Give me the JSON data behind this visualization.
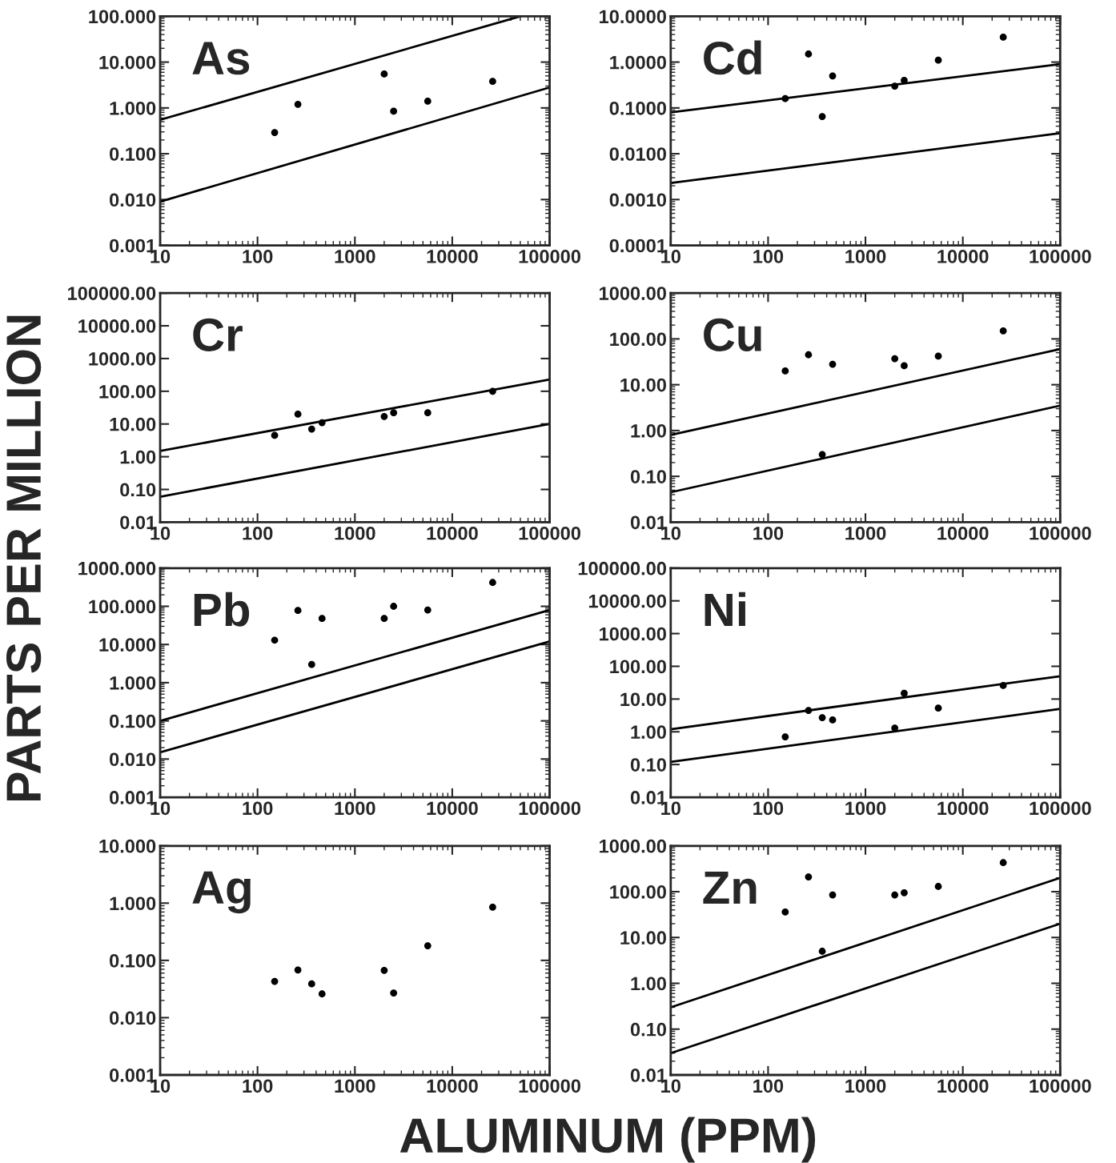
{
  "chart_data": [
    {
      "type": "scatter",
      "annotations": [
        "As"
      ],
      "ylabel": "PARTS PER MILLION",
      "xlabel": "ALUMINUM (PPM)",
      "log": "xy",
      "marker": "circle",
      "line_style": "solid",
      "xlim": [
        10,
        100000
      ],
      "ylim": [
        0.001,
        100
      ],
      "xticks": [
        10,
        100,
        1000,
        10000,
        100000
      ],
      "yticks": [
        {
          "value": 0.001,
          "label": "0.001"
        },
        {
          "value": 0.01,
          "label": "0.010"
        },
        {
          "value": 0.1,
          "label": "0.100"
        },
        {
          "value": 1,
          "label": "1.000"
        },
        {
          "value": 10,
          "label": "10.000"
        },
        {
          "value": 100,
          "label": "100.000"
        }
      ],
      "series": [
        {
          "color": "#000000",
          "x": [
            150,
            260,
            2000,
            2500,
            5600,
            26000
          ],
          "values": [
            0.29,
            1.2,
            5.5,
            0.85,
            1.4,
            3.8
          ]
        },
        {
          "type": "line",
          "marker": "none",
          "color": "#000000",
          "x": [
            10,
            50000
          ],
          "values": [
            0.55,
            100
          ]
        },
        {
          "type": "line",
          "marker": "none",
          "color": "#000000",
          "x": [
            10,
            100000
          ],
          "values": [
            0.009,
            2.8
          ]
        }
      ]
    },
    {
      "type": "scatter",
      "annotations": [
        "Cd"
      ],
      "log": "xy",
      "marker": "circle",
      "line_style": "solid",
      "xlim": [
        10,
        100000
      ],
      "ylim": [
        0.0001,
        10
      ],
      "xticks": [
        10,
        100,
        1000,
        10000,
        100000
      ],
      "yticks": [
        {
          "value": 0.0001,
          "label": "0.0001"
        },
        {
          "value": 0.001,
          "label": "0.0010"
        },
        {
          "value": 0.01,
          "label": "0.0100"
        },
        {
          "value": 0.1,
          "label": "0.1000"
        },
        {
          "value": 1,
          "label": "1.0000"
        },
        {
          "value": 10,
          "label": "10.0000"
        }
      ],
      "series": [
        {
          "color": "#000000",
          "x": [
            150,
            260,
            360,
            460,
            2000,
            2500,
            5600,
            26000
          ],
          "values": [
            0.16,
            1.5,
            0.065,
            0.5,
            0.3,
            0.4,
            1.1,
            3.5
          ]
        },
        {
          "type": "line",
          "marker": "none",
          "color": "#000000",
          "x": [
            10,
            100000
          ],
          "values": [
            0.08,
            0.9
          ]
        },
        {
          "type": "line",
          "marker": "none",
          "color": "#000000",
          "x": [
            10,
            100000
          ],
          "values": [
            0.0023,
            0.028
          ]
        }
      ]
    },
    {
      "type": "scatter",
      "annotations": [
        "Cr"
      ],
      "log": "xy",
      "marker": "circle",
      "line_style": "solid",
      "xlim": [
        10,
        100000
      ],
      "ylim": [
        0.01,
        100000
      ],
      "xticks": [
        10,
        100,
        1000,
        10000,
        100000
      ],
      "yticks": [
        {
          "value": 0.01,
          "label": "0.01"
        },
        {
          "value": 0.1,
          "label": "0.10"
        },
        {
          "value": 1,
          "label": "1.00"
        },
        {
          "value": 10,
          "label": "10.00"
        },
        {
          "value": 100,
          "label": "100.00"
        },
        {
          "value": 1000,
          "label": "1000.00"
        },
        {
          "value": 10000,
          "label": "10000.00"
        },
        {
          "value": 100000,
          "label": "100000.00"
        }
      ],
      "series": [
        {
          "color": "#000000",
          "x": [
            150,
            260,
            360,
            460,
            2000,
            2500,
            5600,
            26000
          ],
          "values": [
            4.5,
            20,
            7,
            11,
            17,
            22,
            22,
            100
          ]
        },
        {
          "type": "line",
          "marker": "none",
          "color": "#000000",
          "x": [
            10,
            100000
          ],
          "values": [
            1.5,
            230
          ]
        },
        {
          "type": "line",
          "marker": "none",
          "color": "#000000",
          "x": [
            10,
            100000
          ],
          "values": [
            0.06,
            10
          ]
        }
      ]
    },
    {
      "type": "scatter",
      "annotations": [
        "Cu"
      ],
      "log": "xy",
      "marker": "circle",
      "line_style": "solid",
      "xlim": [
        10,
        100000
      ],
      "ylim": [
        0.01,
        1000
      ],
      "xticks": [
        10,
        100,
        1000,
        10000,
        100000
      ],
      "yticks": [
        {
          "value": 0.01,
          "label": "0.01"
        },
        {
          "value": 0.1,
          "label": "0.10"
        },
        {
          "value": 1,
          "label": "1.00"
        },
        {
          "value": 10,
          "label": "10.00"
        },
        {
          "value": 100,
          "label": "100.00"
        },
        {
          "value": 1000,
          "label": "1000.00"
        }
      ],
      "series": [
        {
          "color": "#000000",
          "x": [
            150,
            260,
            360,
            460,
            2000,
            2500,
            5600,
            26000
          ],
          "values": [
            20,
            45,
            0.3,
            28,
            37,
            26,
            42,
            150
          ]
        },
        {
          "type": "line",
          "marker": "none",
          "color": "#000000",
          "x": [
            10,
            100000
          ],
          "values": [
            0.8,
            60
          ]
        },
        {
          "type": "line",
          "marker": "none",
          "color": "#000000",
          "x": [
            10,
            100000
          ],
          "values": [
            0.045,
            3.5
          ]
        }
      ]
    },
    {
      "type": "scatter",
      "annotations": [
        "Pb"
      ],
      "log": "xy",
      "marker": "circle",
      "line_style": "solid",
      "xlim": [
        10,
        100000
      ],
      "ylim": [
        0.001,
        1000
      ],
      "xticks": [
        10,
        100,
        1000,
        10000,
        100000
      ],
      "yticks": [
        {
          "value": 0.001,
          "label": "0.001"
        },
        {
          "value": 0.01,
          "label": "0.010"
        },
        {
          "value": 0.1,
          "label": "0.100"
        },
        {
          "value": 1,
          "label": "1.000"
        },
        {
          "value": 10,
          "label": "10.000"
        },
        {
          "value": 100,
          "label": "100.000"
        },
        {
          "value": 1000,
          "label": "1000.000"
        }
      ],
      "series": [
        {
          "color": "#000000",
          "x": [
            150,
            260,
            360,
            460,
            2000,
            2500,
            5600,
            26000
          ],
          "values": [
            13,
            78,
            3,
            48,
            48,
            100,
            80,
            420
          ]
        },
        {
          "type": "line",
          "marker": "none",
          "color": "#000000",
          "x": [
            10,
            100000
          ],
          "values": [
            0.1,
            80
          ]
        },
        {
          "type": "line",
          "marker": "none",
          "color": "#000000",
          "x": [
            10,
            100000
          ],
          "values": [
            0.015,
            12
          ]
        }
      ]
    },
    {
      "type": "scatter",
      "annotations": [
        "Ni"
      ],
      "log": "xy",
      "marker": "circle",
      "line_style": "solid",
      "xlim": [
        10,
        100000
      ],
      "ylim": [
        0.01,
        100000
      ],
      "xticks": [
        10,
        100,
        1000,
        10000,
        100000
      ],
      "yticks": [
        {
          "value": 0.01,
          "label": "0.01"
        },
        {
          "value": 0.1,
          "label": "0.10"
        },
        {
          "value": 1,
          "label": "1.00"
        },
        {
          "value": 10,
          "label": "10.00"
        },
        {
          "value": 100,
          "label": "100.00"
        },
        {
          "value": 1000,
          "label": "1000.00"
        },
        {
          "value": 10000,
          "label": "10000.00"
        },
        {
          "value": 100000,
          "label": "100000.00"
        }
      ],
      "series": [
        {
          "color": "#000000",
          "x": [
            150,
            260,
            360,
            460,
            2000,
            2500,
            5600,
            26000
          ],
          "values": [
            0.7,
            4.5,
            2.7,
            2.3,
            1.3,
            15,
            5.3,
            26
          ]
        },
        {
          "type": "line",
          "marker": "none",
          "color": "#000000",
          "x": [
            10,
            100000
          ],
          "values": [
            1.2,
            50
          ]
        },
        {
          "type": "line",
          "marker": "none",
          "color": "#000000",
          "x": [
            10,
            100000
          ],
          "values": [
            0.12,
            5
          ]
        }
      ]
    },
    {
      "type": "scatter",
      "annotations": [
        "Ag"
      ],
      "log": "xy",
      "marker": "circle",
      "xlim": [
        10,
        100000
      ],
      "ylim": [
        0.001,
        10
      ],
      "xticks": [
        10,
        100,
        1000,
        10000,
        100000
      ],
      "yticks": [
        {
          "value": 0.001,
          "label": "0.001"
        },
        {
          "value": 0.01,
          "label": "0.010"
        },
        {
          "value": 0.1,
          "label": "0.100"
        },
        {
          "value": 1,
          "label": "1.000"
        },
        {
          "value": 10,
          "label": "10.000"
        }
      ],
      "series": [
        {
          "color": "#000000",
          "x": [
            150,
            260,
            360,
            460,
            2000,
            2500,
            5600,
            26000
          ],
          "values": [
            0.043,
            0.068,
            0.039,
            0.026,
            0.067,
            0.027,
            0.18,
            0.85
          ]
        }
      ]
    },
    {
      "type": "scatter",
      "annotations": [
        "Zn"
      ],
      "log": "xy",
      "marker": "circle",
      "line_style": "solid",
      "xlim": [
        10,
        100000
      ],
      "ylim": [
        0.01,
        1000
      ],
      "xticks": [
        10,
        100,
        1000,
        10000,
        100000
      ],
      "yticks": [
        {
          "value": 0.01,
          "label": "0.01"
        },
        {
          "value": 0.1,
          "label": "0.10"
        },
        {
          "value": 1,
          "label": "1.00"
        },
        {
          "value": 10,
          "label": "10.00"
        },
        {
          "value": 100,
          "label": "100.00"
        },
        {
          "value": 1000,
          "label": "1000.00"
        }
      ],
      "series": [
        {
          "color": "#000000",
          "x": [
            150,
            260,
            360,
            460,
            2000,
            2500,
            5600,
            26000
          ],
          "values": [
            36,
            210,
            5,
            85,
            85,
            95,
            130,
            430
          ]
        },
        {
          "type": "line",
          "marker": "none",
          "color": "#000000",
          "x": [
            10,
            100000
          ],
          "values": [
            0.3,
            200
          ]
        },
        {
          "type": "line",
          "marker": "none",
          "color": "#000000",
          "x": [
            10,
            100000
          ],
          "values": [
            0.03,
            20
          ]
        }
      ]
    }
  ]
}
